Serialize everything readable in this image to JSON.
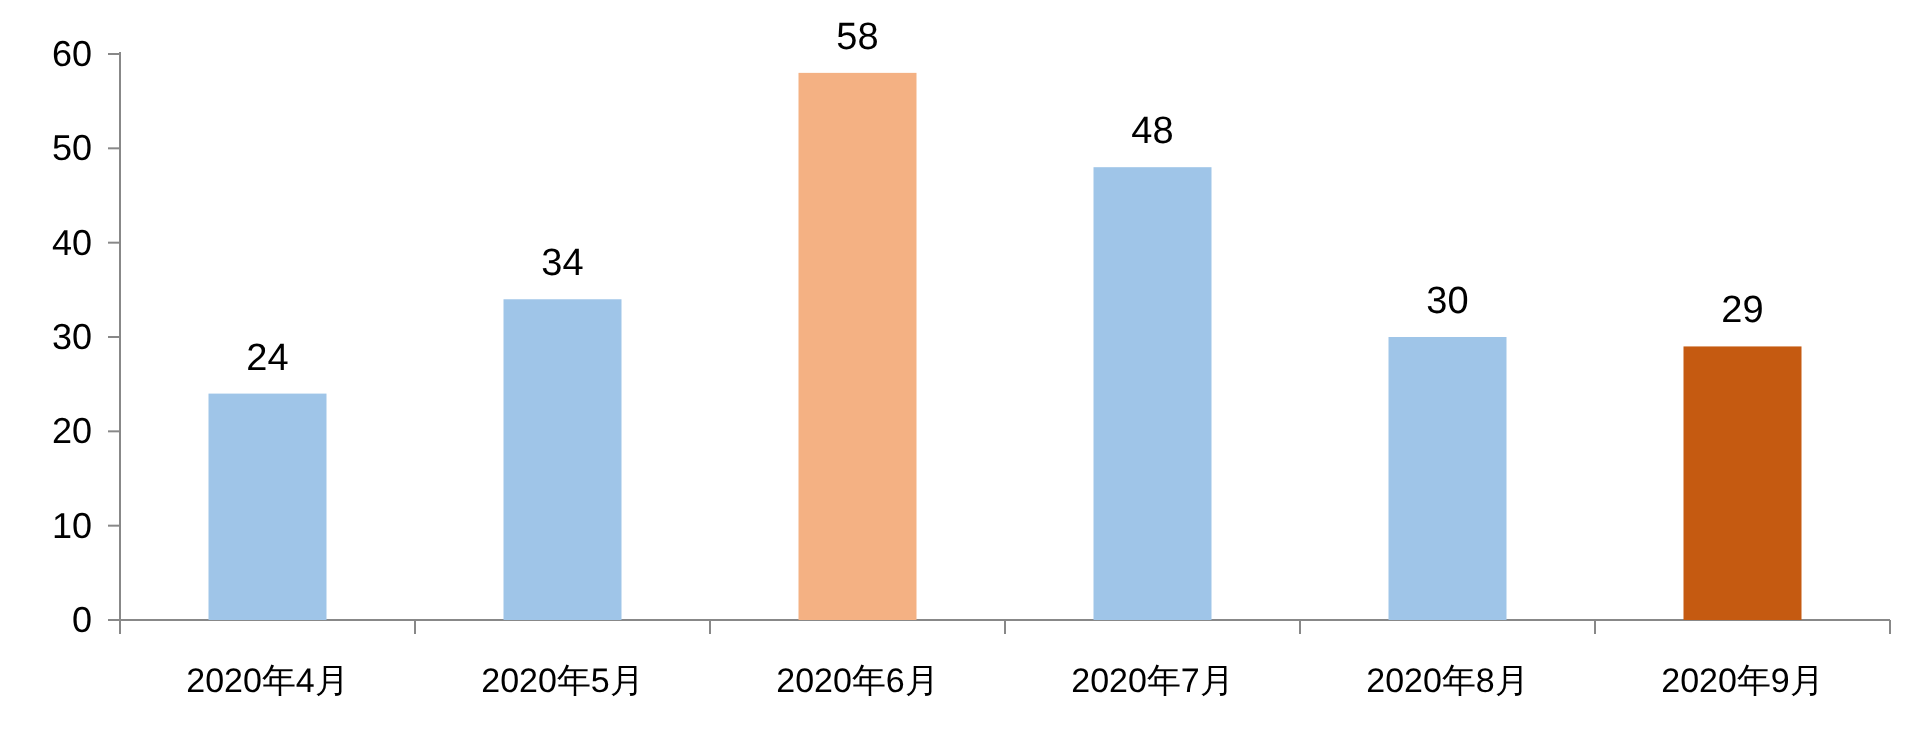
{
  "chart_data": {
    "type": "bar",
    "categories": [
      "2020年4月",
      "2020年5月",
      "2020年6月",
      "2020年7月",
      "2020年8月",
      "2020年9月"
    ],
    "values": [
      24,
      34,
      58,
      48,
      30,
      29
    ],
    "colors": [
      "#9fc5e8",
      "#9fc5e8",
      "#f4b183",
      "#9fc5e8",
      "#9fc5e8",
      "#c55a11"
    ],
    "ylim": [
      0,
      60
    ],
    "yticks": [
      0,
      10,
      20,
      30,
      40,
      50,
      60
    ],
    "data_labels": true
  }
}
